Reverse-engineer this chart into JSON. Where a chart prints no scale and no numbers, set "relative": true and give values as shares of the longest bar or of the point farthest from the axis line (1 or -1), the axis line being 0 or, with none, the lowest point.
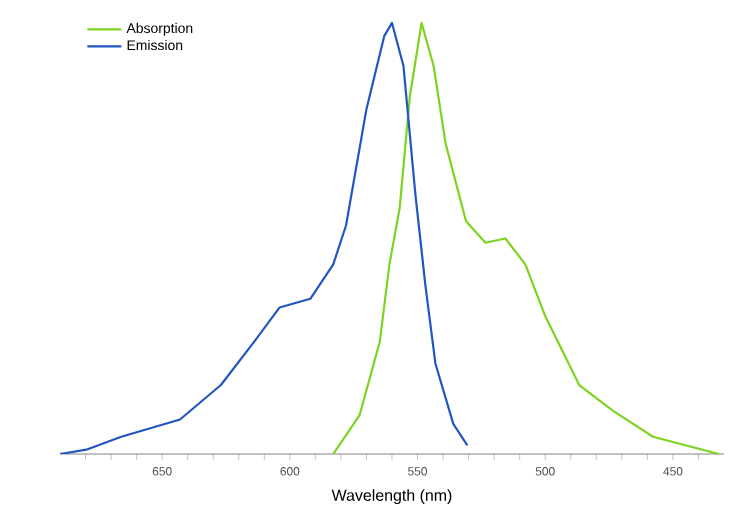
{
  "chart_data": {
    "type": "line",
    "xlabel": "Wavelength (nm)",
    "relative": true,
    "xlim": [
      690,
      430
    ],
    "xticks": [
      {
        "value": 680,
        "label": null
      },
      {
        "value": 670,
        "label": null
      },
      {
        "value": 660,
        "label": null
      },
      650,
      {
        "value": 640,
        "label": null
      },
      {
        "value": 630,
        "label": null
      },
      {
        "value": 620,
        "label": null
      },
      {
        "value": 610,
        "label": null
      },
      600,
      {
        "value": 590,
        "label": null
      },
      {
        "value": 580,
        "label": null
      },
      {
        "value": 570,
        "label": null
      },
      {
        "value": 560,
        "label": null
      },
      550,
      {
        "value": 540,
        "label": null
      },
      {
        "value": 530,
        "label": null
      },
      {
        "value": 520,
        "label": null
      },
      {
        "value": 510,
        "label": null
      },
      500,
      {
        "value": 490,
        "label": null
      },
      {
        "value": 480,
        "label": null
      },
      {
        "value": 470,
        "label": null
      },
      {
        "value": 460,
        "label": null
      },
      450,
      {
        "value": 440,
        "label": null
      }
    ],
    "legend": "top left",
    "grid": false,
    "marker": "none",
    "line_style": "solid",
    "series": [
      {
        "name": "Absorption",
        "color": "#7ed321",
        "x": [
          583,
          572.7,
          564.8,
          561,
          557,
          553,
          548.4,
          543.7,
          539,
          531,
          523.4,
          515.6,
          507.8,
          500,
          486.7,
          473.4,
          457.8,
          432
        ],
        "values": [
          0,
          0.09,
          0.26,
          0.44,
          0.57,
          0.83,
          1.0,
          0.9,
          0.72,
          0.54,
          0.49,
          0.5,
          0.44,
          0.32,
          0.16,
          0.1,
          0.04,
          0
        ]
      },
      {
        "name": "Emission",
        "color": "#2255c4",
        "x": [
          690,
          679.7,
          666,
          643,
          627,
          614,
          604,
          592,
          583,
          578,
          570,
          563,
          560,
          555.5,
          550.8,
          546.9,
          543,
          536,
          530.5
        ],
        "values": [
          0,
          0.01,
          0.04,
          0.08,
          0.16,
          0.26,
          0.34,
          0.36,
          0.44,
          0.53,
          0.8,
          0.97,
          1.0,
          0.9,
          0.6,
          0.39,
          0.21,
          0.07,
          0.02
        ]
      }
    ]
  }
}
